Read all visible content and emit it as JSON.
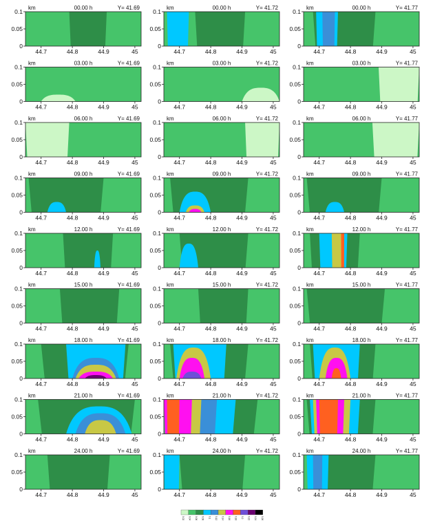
{
  "figure": {
    "unit": "km",
    "panel_y_labels": [
      "Y= 41.69",
      "Y= 41.72",
      "Y= 41.77"
    ],
    "time_labels": [
      "00.00 h",
      "03.00 h",
      "06.00 h",
      "09.00 h",
      "12.00 h",
      "15.00 h",
      "18.00 h",
      "21.00 h",
      "24.00 h"
    ],
    "x_ticks": [
      "44.7",
      "44.8",
      "44.9",
      "45"
    ],
    "y_ticks": [
      "0.1",
      "0.05",
      "0"
    ],
    "colorbar_tick_labels": [
      "0.02",
      "0.04",
      "0.06",
      "0.08",
      "0.1",
      "0.12",
      "0.14",
      "0.16",
      "0.18",
      "0.2",
      "0.22",
      "0.24",
      "0.26"
    ]
  },
  "colors": {
    "c0": "#ccf7c6",
    "c1": "#46c46a",
    "c2": "#2e8e48",
    "c3": "#00c8ff",
    "c4": "#3a8fd8",
    "c5": "#c8c845",
    "c6": "#ff10f0",
    "c7": "#ff6020",
    "c8": "#6f4fd8",
    "c9": "#6a0070",
    "c10": "#000000"
  },
  "chart_data": {
    "type": "heatmap",
    "description_of_layout": "9 rows (times) x 3 columns (Y sections) of vertical cross-section contour panels; x axis longitude 44.65-45.02, z axis height in km 0-0.1",
    "x_range": [
      44.65,
      45.02
    ],
    "y_range": [
      0,
      0.1
    ],
    "colorbar_levels": [
      0.02,
      0.04,
      0.06,
      0.08,
      0.1,
      0.12,
      0.14,
      0.16,
      0.18,
      0.2,
      0.22,
      0.24,
      0.26
    ],
    "rows": [
      {
        "time": "00.00 h",
        "panels": [
          {
            "y": "Y= 41.69",
            "regions": [
              {
                "level": 2,
                "x": [
                  44.79,
                  44.91
                ],
                "z_top": 0.1
              }
            ]
          },
          {
            "y": "Y= 41.72",
            "regions": [
              {
                "level": 2,
                "x": [
                  44.75,
                  44.91
                ],
                "z_top": 0.1
              },
              {
                "level": 3,
                "x": [
                  44.66,
                  44.73
                ],
                "z_top": 0.1
              }
            ]
          },
          {
            "y": "Y= 41.77",
            "regions": [
              {
                "level": 2,
                "x": [
                  44.68,
                  44.88
                ],
                "z_top": 0.1
              },
              {
                "level": 3,
                "x": [
                  44.69,
                  44.76
                ],
                "z_top": 0.1
              },
              {
                "level": 4,
                "x": [
                  44.71,
                  44.75
                ],
                "z_top": 0.1
              }
            ]
          }
        ]
      },
      {
        "time": "03.00 h",
        "panels": [
          {
            "y": "Y= 41.69",
            "regions": [
              {
                "level": 0,
                "x": [
                  44.7,
                  44.81
                ],
                "z_top": 0.02
              }
            ]
          },
          {
            "y": "Y= 41.72",
            "regions": [
              {
                "level": 0,
                "x": [
                  44.9,
                  45.02
                ],
                "z_top": 0.04
              }
            ]
          },
          {
            "y": "Y= 41.77",
            "regions": [
              {
                "level": 0,
                "x": [
                  44.89,
                  45.02
                ],
                "z_top": 0.1
              }
            ]
          }
        ]
      },
      {
        "time": "06.00 h",
        "panels": [
          {
            "y": "Y= 41.69",
            "regions": [
              {
                "level": 0,
                "x": [
                  44.65,
                  44.79
                ],
                "z_top": 0.1
              }
            ]
          },
          {
            "y": "Y= 41.72",
            "regions": [
              {
                "level": 0,
                "x": [
                  44.91,
                  45.02
                ],
                "z_top": 0.1
              }
            ]
          },
          {
            "y": "Y= 41.77",
            "regions": [
              {
                "level": 0,
                "x": [
                  44.87,
                  45.02
                ],
                "z_top": 0.1
              }
            ]
          }
        ]
      },
      {
        "time": "09.00 h",
        "panels": [
          {
            "y": "Y= 41.69",
            "regions": [
              {
                "level": 2,
                "x": [
                  44.66,
                  44.9
                ],
                "z_top": 0.1
              },
              {
                "level": 3,
                "x": [
                  44.72,
                  44.78
                ],
                "z_top": 0.03
              }
            ]
          },
          {
            "y": "Y= 41.72",
            "regions": [
              {
                "level": 2,
                "x": [
                  44.67,
                  44.92
                ],
                "z_top": 0.1
              },
              {
                "level": 3,
                "x": [
                  44.7,
                  44.8
                ],
                "z_top": 0.06
              },
              {
                "level": 5,
                "x": [
                  44.72,
                  44.78
                ],
                "z_top": 0.02
              },
              {
                "level": 6,
                "x": [
                  44.73,
                  44.77
                ],
                "z_top": 0.01
              }
            ]
          },
          {
            "y": "Y= 41.77",
            "regions": [
              {
                "level": 2,
                "x": [
                  44.66,
                  44.9
                ],
                "z_top": 0.1
              },
              {
                "level": 3,
                "x": [
                  44.72,
                  44.78
                ],
                "z_top": 0.03
              }
            ]
          }
        ]
      },
      {
        "time": "12.00 h",
        "panels": [
          {
            "y": "Y= 41.69",
            "regions": [
              {
                "level": 2,
                "x": [
                  44.77,
                  44.93
                ],
                "z_top": 0.1
              },
              {
                "level": 3,
                "x": [
                  44.87,
                  44.89
                ],
                "z_top": 0.05
              }
            ]
          },
          {
            "y": "Y= 41.72",
            "regions": [
              {
                "level": 2,
                "x": [
                  44.7,
                  44.92
                ],
                "z_top": 0.1
              },
              {
                "level": 3,
                "x": [
                  44.7,
                  44.76
                ],
                "z_top": 0.07
              }
            ]
          },
          {
            "y": "Y= 41.77",
            "regions": [
              {
                "level": 2,
                "x": [
                  44.67,
                  44.83
                ],
                "z_top": 0.1
              },
              {
                "level": 3,
                "x": [
                  44.7,
                  44.79
                ],
                "z_top": 0.1
              },
              {
                "level": 5,
                "x": [
                  44.74,
                  44.78
                ],
                "z_top": 0.1
              },
              {
                "level": 7,
                "x": [
                  44.77,
                  44.78
                ],
                "z_top": 0.1
              }
            ]
          }
        ]
      },
      {
        "time": "15.00 h",
        "panels": [
          {
            "y": "Y= 41.69",
            "regions": [
              {
                "level": 2,
                "x": [
                  44.76,
                  44.95
                ],
                "z_top": 0.1
              }
            ]
          },
          {
            "y": "Y= 41.72",
            "regions": [
              {
                "level": 2,
                "x": [
                  44.76,
                  44.92
                ],
                "z_top": 0.1
              }
            ]
          },
          {
            "y": "Y= 41.77",
            "regions": [
              {
                "level": 2,
                "x": [
                  44.66,
                  44.91
                ],
                "z_top": 0.1
              }
            ]
          }
        ]
      },
      {
        "time": "18.00 h",
        "panels": [
          {
            "y": "Y= 41.69",
            "regions": [
              {
                "level": 2,
                "x": [
                  44.7,
                  44.98
                ],
                "z_top": 0.1
              },
              {
                "level": 3,
                "x": [
                  44.78,
                  44.97
                ],
                "z_top": 0.1
              },
              {
                "level": 4,
                "x": [
                  44.8,
                  44.95
                ],
                "z_top": 0.06
              },
              {
                "level": 5,
                "x": [
                  44.81,
                  44.94
                ],
                "z_top": 0.04
              },
              {
                "level": 6,
                "x": [
                  44.82,
                  44.93
                ],
                "z_top": 0.02
              },
              {
                "level": 9,
                "x": [
                  44.84,
                  44.91
                ],
                "z_top": 0.01
              }
            ]
          },
          {
            "y": "Y= 41.72",
            "regions": [
              {
                "level": 2,
                "x": [
                  44.67,
                  44.92
                ],
                "z_top": 0.1
              },
              {
                "level": 3,
                "x": [
                  44.68,
                  44.85
                ],
                "z_top": 0.1
              },
              {
                "level": 5,
                "x": [
                  44.69,
                  44.8
                ],
                "z_top": 0.09
              },
              {
                "level": 6,
                "x": [
                  44.7,
                  44.78
                ],
                "z_top": 0.06
              },
              {
                "level": 8,
                "x": [
                  44.71,
                  44.77
                ],
                "z_top": 0.02
              }
            ]
          },
          {
            "y": "Y= 41.77",
            "regions": [
              {
                "level": 2,
                "x": [
                  44.67,
                  44.88
                ],
                "z_top": 0.1
              },
              {
                "level": 3,
                "x": [
                  44.68,
                  44.83
                ],
                "z_top": 0.1
              },
              {
                "level": 5,
                "x": [
                  44.7,
                  44.8
                ],
                "z_top": 0.09
              },
              {
                "level": 6,
                "x": [
                  44.72,
                  44.79
                ],
                "z_top": 0.06
              },
              {
                "level": 7,
                "x": [
                  44.74,
                  44.77
                ],
                "z_top": 0.03
              }
            ]
          }
        ]
      },
      {
        "time": "21.00 h",
        "panels": [
          {
            "y": "Y= 41.69",
            "regions": [
              {
                "level": 2,
                "x": [
                  44.69,
                  45.0
                ],
                "z_top": 0.1
              },
              {
                "level": 3,
                "x": [
                  44.78,
                  44.99
                ],
                "z_top": 0.08
              },
              {
                "level": 4,
                "x": [
                  44.81,
                  44.97
                ],
                "z_top": 0.06
              },
              {
                "level": 5,
                "x": [
                  44.84,
                  44.94
                ],
                "z_top": 0.04
              }
            ]
          },
          {
            "y": "Y= 41.72",
            "regions": [
              {
                "level": 2,
                "x": [
                  44.65,
                  44.95
                ],
                "z_top": 0.1
              },
              {
                "level": 3,
                "x": [
                  44.65,
                  44.88
                ],
                "z_top": 0.1
              },
              {
                "level": 4,
                "x": [
                  44.65,
                  44.82
                ],
                "z_top": 0.1
              },
              {
                "level": 5,
                "x": [
                  44.65,
                  44.77
                ],
                "z_top": 0.1
              },
              {
                "level": 6,
                "x": [
                  44.65,
                  44.74
                ],
                "z_top": 0.1
              },
              {
                "level": 7,
                "x": [
                  44.66,
                  44.7
                ],
                "z_top": 0.1
              }
            ]
          },
          {
            "y": "Y= 41.77",
            "regions": [
              {
                "level": 2,
                "x": [
                  44.66,
                  44.88
                ],
                "z_top": 0.1
              },
              {
                "level": 3,
                "x": [
                  44.67,
                  44.83
                ],
                "z_top": 0.1
              },
              {
                "level": 5,
                "x": [
                  44.68,
                  44.8
                ],
                "z_top": 0.1
              },
              {
                "level": 6,
                "x": [
                  44.69,
                  44.78
                ],
                "z_top": 0.1
              },
              {
                "level": 7,
                "x": [
                  44.7,
                  44.76
                ],
                "z_top": 0.1
              }
            ]
          }
        ]
      },
      {
        "time": "24.00 h",
        "panels": [
          {
            "y": "Y= 41.69",
            "regions": [
              {
                "level": 2,
                "x": [
                  44.72,
                  44.92
                ],
                "z_top": 0.1
              }
            ]
          },
          {
            "y": "Y= 41.72",
            "regions": [
              {
                "level": 2,
                "x": [
                  44.7,
                  44.91
                ],
                "z_top": 0.1
              },
              {
                "level": 3,
                "x": [
                  44.65,
                  44.7
                ],
                "z_top": 0.1
              }
            ]
          },
          {
            "y": "Y= 41.77",
            "regions": [
              {
                "level": 2,
                "x": [
                  44.66,
                  44.88
                ],
                "z_top": 0.1
              },
              {
                "level": 3,
                "x": [
                  44.66,
                  44.73
                ],
                "z_top": 0.1
              },
              {
                "level": 4,
                "x": [
                  44.68,
                  44.71
                ],
                "z_top": 0.1
              }
            ]
          }
        ]
      }
    ]
  }
}
